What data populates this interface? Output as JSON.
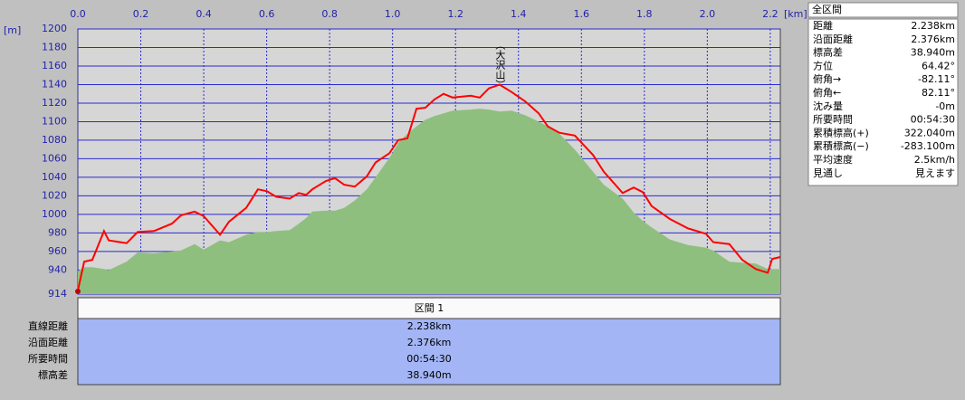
{
  "chart_data": {
    "type": "line",
    "x_unit": "[km]",
    "y_unit": "[m]",
    "xlim": [
      0,
      2.232
    ],
    "ylim": [
      914,
      1200
    ],
    "xticks": [
      {
        "value": 0,
        "label": "0.0"
      },
      0.2,
      0.4,
      0.6,
      0.8,
      {
        "value": 1,
        "label": "1.0"
      },
      1.2,
      1.4,
      1.6,
      1.8,
      {
        "value": 2,
        "label": "2.0"
      },
      2.2
    ],
    "yticks": [
      914,
      940,
      960,
      980,
      1000,
      1020,
      1040,
      1060,
      1080,
      1100,
      1120,
      1140,
      1160,
      1180,
      1200
    ],
    "grid": true,
    "x": [
      0,
      0.02,
      0.046,
      0.083,
      0.098,
      0.155,
      0.19,
      0.242,
      0.299,
      0.328,
      0.371,
      0.4,
      0.452,
      0.48,
      0.535,
      0.572,
      0.601,
      0.63,
      0.673,
      0.702,
      0.725,
      0.745,
      0.788,
      0.817,
      0.846,
      0.88,
      0.918,
      0.946,
      0.99,
      1.018,
      1.047,
      1.076,
      1.104,
      1.133,
      1.162,
      1.191,
      1.248,
      1.277,
      1.306,
      1.34,
      1.378,
      1.421,
      1.464,
      1.493,
      1.53,
      1.579,
      1.637,
      1.671,
      1.731,
      1.766,
      1.795,
      1.823,
      1.881,
      1.938,
      1.996,
      2.019,
      2.07,
      2.111,
      2.154,
      2.192,
      2.206,
      2.232
    ],
    "series": [
      {
        "color": "#8fbf7f",
        "fill": true,
        "values": [
          939,
          943,
          943,
          941,
          940,
          949,
          959,
          958,
          960,
          961,
          968,
          962,
          972,
          970,
          978,
          981,
          981,
          982,
          983,
          990,
          996,
          1003,
          1004,
          1004,
          1007,
          1015,
          1027,
          1040,
          1061,
          1077,
          1087,
          1095,
          1102,
          1106,
          1109,
          1112,
          1113,
          1114,
          1113,
          1111,
          1112,
          1107,
          1100,
          1095,
          1087,
          1070,
          1046,
          1032,
          1017,
          1002,
          993,
          986,
          973,
          967,
          964,
          961,
          949,
          948,
          947,
          941,
          941,
          941
        ]
      },
      {
        "color": "#ff0000",
        "fill": false,
        "values": [
          918,
          949,
          951,
          982,
          972,
          969,
          981,
          982,
          990,
          999,
          1003,
          998,
          978,
          992,
          1007,
          1027,
          1025,
          1019,
          1017,
          1023,
          1021,
          1027,
          1036,
          1039,
          1032,
          1030,
          1041,
          1056,
          1066,
          1080,
          1082,
          1114,
          1115,
          1124,
          1130,
          1126,
          1128,
          1126,
          1136,
          1140,
          1132,
          1122,
          1109,
          1095,
          1088,
          1085,
          1064,
          1046,
          1023,
          1029,
          1024,
          1009,
          995,
          985,
          979,
          970,
          968,
          951,
          941,
          937,
          952,
          954
        ]
      }
    ],
    "annotations": [
      {
        "text": "（大沢山）",
        "x": 1.34
      }
    ]
  },
  "summary_panel": {
    "title": "全区間",
    "rows": [
      [
        "距離",
        "2.238km"
      ],
      [
        "沿面距離",
        "2.376km"
      ],
      [
        "標高差",
        "38.940m"
      ],
      [
        "方位",
        "64.42°"
      ],
      [
        "俯角→",
        "-82.11°"
      ],
      [
        "俯角←",
        "82.11°"
      ],
      [
        "沈み量",
        "-0m"
      ],
      [
        "所要時間",
        "00:54:30"
      ],
      [
        "累積標高(+)",
        "322.040m"
      ],
      [
        "累積標高(−)",
        "-283.100m"
      ],
      [
        "平均速度",
        "2.5km/h"
      ],
      [
        "見通し",
        "見えます"
      ]
    ]
  },
  "section_table": {
    "header": "区間 1",
    "rows": [
      [
        "直線距離",
        "2.238km"
      ],
      [
        "沿面距離",
        "2.376km"
      ],
      [
        "所要時間",
        "00:54:30"
      ],
      [
        "標高差",
        "38.940m"
      ]
    ]
  }
}
